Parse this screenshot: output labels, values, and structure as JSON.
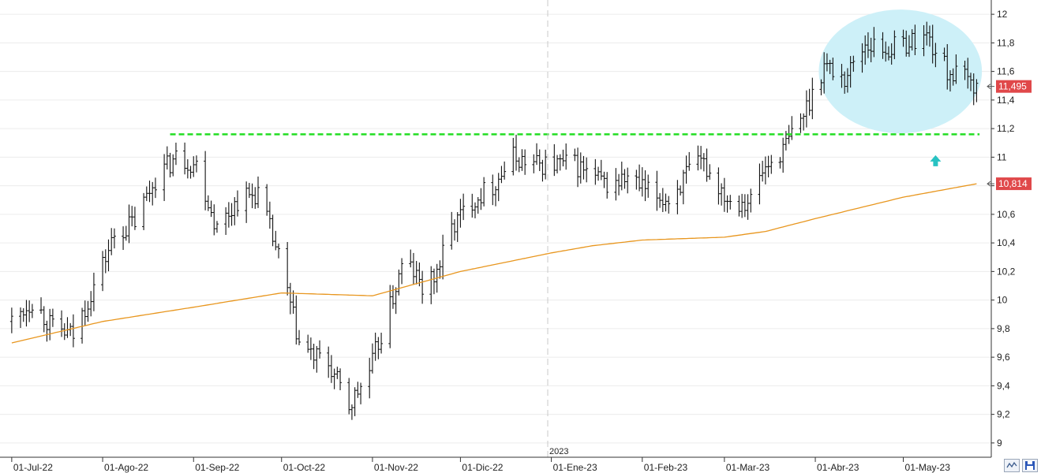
{
  "chart_data": {
    "type": "ohlc",
    "x_ticks": [
      "01-Jul-22",
      "01-Ago-22",
      "01-Sep-22",
      "01-Oct-22",
      "01-Nov-22",
      "01-Dic-22",
      "01-Ene-23",
      "01-Feb-23",
      "01-Mar-23",
      "01-Abr-23",
      "01-May-23"
    ],
    "year_marker": "2023",
    "y_ticks": [
      "12",
      "11,8",
      "11,6",
      "11,4",
      "11,2",
      "11",
      "10,8",
      "10,6",
      "10,4",
      "10,2",
      "10",
      "9,8",
      "9,6",
      "9,4",
      "9,2",
      "9"
    ],
    "ylim": [
      8.9,
      12.1
    ],
    "price_label": "11,495",
    "ma_label": "10,814",
    "last_price": 11.495,
    "last_ma": 10.814,
    "resistance_level": 11.16,
    "colors": {
      "bars": "#111111",
      "moving_average": "#e8961e",
      "resistance": "#22dd22",
      "highlight": "#cdf0f8",
      "arrow": "#27c2c2",
      "price_tag": "#e0484a"
    },
    "price_anchors": [
      [
        "2022-07-01",
        9.85
      ],
      [
        "2022-07-08",
        10.0
      ],
      [
        "2022-07-15",
        9.8
      ],
      [
        "2022-07-22",
        9.75
      ],
      [
        "2022-07-29",
        10.1
      ],
      [
        "2022-08-05",
        10.45
      ],
      [
        "2022-08-12",
        10.55
      ],
      [
        "2022-08-19",
        10.85
      ],
      [
        "2022-08-26",
        11.0
      ],
      [
        "2022-09-02",
        10.95
      ],
      [
        "2022-09-09",
        10.5
      ],
      [
        "2022-09-16",
        10.7
      ],
      [
        "2022-09-23",
        10.75
      ],
      [
        "2022-09-30",
        10.3
      ],
      [
        "2022-10-07",
        9.7
      ],
      [
        "2022-10-12",
        9.6
      ],
      [
        "2022-10-17",
        9.55
      ],
      [
        "2022-10-24",
        9.25
      ],
      [
        "2022-10-31",
        9.5
      ],
      [
        "2022-11-07",
        9.95
      ],
      [
        "2022-11-12",
        10.3
      ],
      [
        "2022-11-19",
        10.05
      ],
      [
        "2022-11-23",
        10.2
      ],
      [
        "2022-11-28",
        10.5
      ],
      [
        "2022-12-05",
        10.7
      ],
      [
        "2022-12-12",
        10.8
      ],
      [
        "2022-12-19",
        11.0
      ],
      [
        "2022-12-26",
        10.95
      ],
      [
        "2023-01-02",
        10.95
      ],
      [
        "2023-01-09",
        10.95
      ],
      [
        "2023-01-16",
        10.85
      ],
      [
        "2023-01-20",
        10.8
      ],
      [
        "2023-01-27",
        10.85
      ],
      [
        "2023-02-03",
        10.75
      ],
      [
        "2023-02-10",
        10.7
      ],
      [
        "2023-02-17",
        10.9
      ],
      [
        "2023-02-22",
        10.95
      ],
      [
        "2023-02-27",
        10.8
      ],
      [
        "2023-03-03",
        10.7
      ],
      [
        "2023-03-10",
        10.7
      ],
      [
        "2023-03-14",
        10.9
      ],
      [
        "2023-03-21",
        11.05
      ],
      [
        "2023-03-28",
        11.3
      ],
      [
        "2023-04-04",
        11.65
      ],
      [
        "2023-04-11",
        11.55
      ],
      [
        "2023-04-18",
        11.8
      ],
      [
        "2023-04-25",
        11.75
      ],
      [
        "2023-05-02",
        11.8
      ],
      [
        "2023-05-09",
        11.85
      ],
      [
        "2023-05-16",
        11.6
      ],
      [
        "2023-05-22",
        11.55
      ],
      [
        "2023-05-26",
        11.495
      ]
    ],
    "ma_anchors": [
      [
        "2022-07-01",
        9.7
      ],
      [
        "2022-08-01",
        9.85
      ],
      [
        "2022-09-01",
        9.95
      ],
      [
        "2022-10-01",
        10.05
      ],
      [
        "2022-11-01",
        10.03
      ],
      [
        "2022-12-01",
        10.2
      ],
      [
        "2023-01-01",
        10.33
      ],
      [
        "2023-01-15",
        10.38
      ],
      [
        "2023-02-01",
        10.42
      ],
      [
        "2023-03-01",
        10.44
      ],
      [
        "2023-03-15",
        10.48
      ],
      [
        "2023-04-01",
        10.57
      ],
      [
        "2023-05-01",
        10.72
      ],
      [
        "2023-05-26",
        10.814
      ]
    ],
    "highlight_region": {
      "x_start": "2023-04-03",
      "x_end": "2023-05-27",
      "y_low": 11.2,
      "y_high": 12.0
    },
    "arrow_at": {
      "date": "2023-05-12",
      "value": 10.97
    }
  }
}
